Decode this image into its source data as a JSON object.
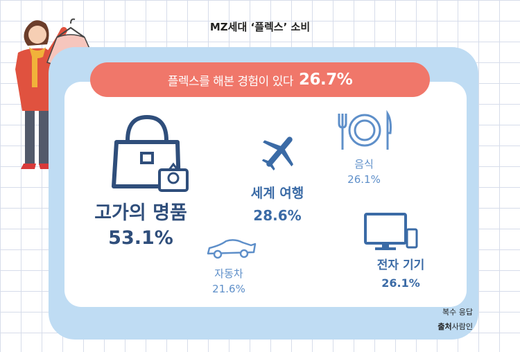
{
  "title": "MZ세대 ‘플렉스’ 소비",
  "banner": {
    "text": "플렉스를 해본 경험이 있다",
    "value": "26.7%"
  },
  "items": [
    {
      "label": "고가의 명품",
      "value": "53.1%",
      "icon": "handbag-ring-icon"
    },
    {
      "label": "세계 여행",
      "value": "28.6%",
      "icon": "airplane-icon"
    },
    {
      "label": "음식",
      "value": "26.1%",
      "icon": "fork-plate-knife-icon"
    },
    {
      "label": "자동차",
      "value": "21.6%",
      "icon": "sports-car-icon"
    },
    {
      "label": "전자 기기",
      "value": "26.1%",
      "icon": "monitor-phone-icon"
    }
  ],
  "footnote": "복수 응답",
  "source": {
    "label": "출처",
    "name": "사람인"
  },
  "chart_data": {
    "type": "bubble-infographic",
    "title": "MZ세대 ‘플렉스’ 소비",
    "headline": {
      "label": "플렉스를 해본 경험이 있다",
      "value": 26.7,
      "unit": "%"
    },
    "categories": [
      "고가의 명품",
      "세계 여행",
      "음식",
      "자동차",
      "전자 기기"
    ],
    "values": [
      53.1,
      28.6,
      26.1,
      21.6,
      26.1
    ],
    "unit": "%",
    "note": "복수 응답",
    "source": "사람인",
    "colors": {
      "navy": "#2f4e7b",
      "blue": "#3b6ba6",
      "light": "#5e8fc9",
      "banner": "#f0776a",
      "panel": "#bfdcf3"
    }
  }
}
